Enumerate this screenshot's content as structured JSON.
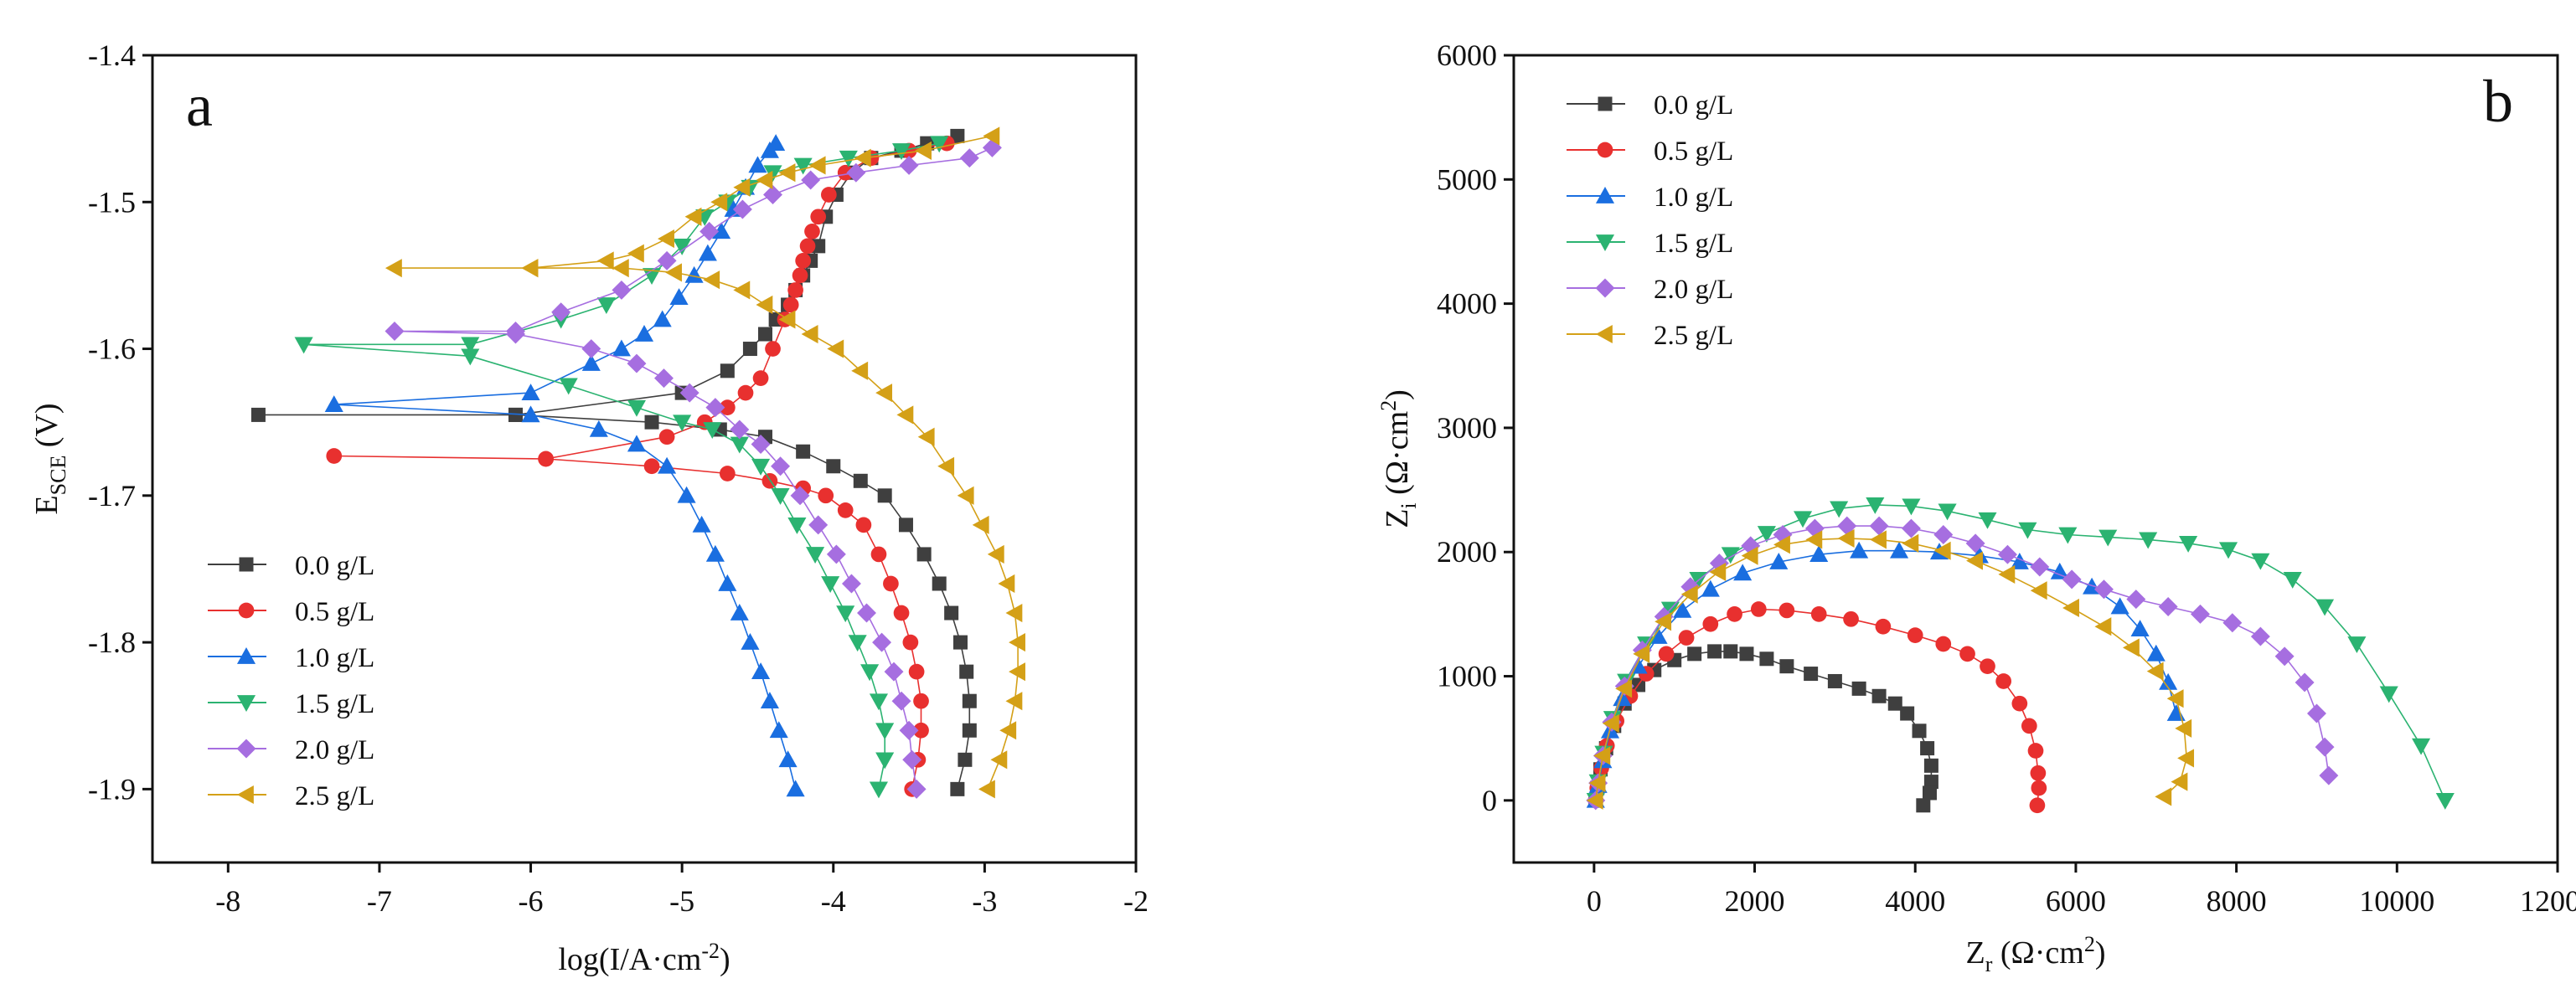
{
  "chart_data": [
    {
      "type": "line",
      "panel_label": "a",
      "xlabel_main": "log(I/A·cm",
      "xlabel_sup": "-2",
      "xlabel_end": ")",
      "ylabel_main": "E",
      "ylabel_sub": "SCE",
      "ylabel_end": " (V)",
      "xlim": [
        -8.5,
        -2.0
      ],
      "ylim": [
        -1.95,
        -1.4
      ],
      "xticks": [
        -8,
        -7,
        -6,
        -5,
        -4,
        -3,
        -2
      ],
      "xtick_labels": [
        "-8",
        "-7",
        "-6",
        "-5",
        "-4",
        "-3",
        "-2"
      ],
      "yticks": [
        -1.4,
        -1.5,
        -1.6,
        -1.7,
        -1.8,
        -1.9
      ],
      "ytick_labels": [
        "-1.4",
        "-1.5",
        "-1.6",
        "-1.7",
        "-1.8",
        "-1.9"
      ],
      "legend_position": "bottom-left",
      "series": [
        {
          "name": "0.0 g/L",
          "color": "#3f3f3f",
          "marker": "square",
          "x": [
            -3.18,
            -3.13,
            -3.1,
            -3.1,
            -3.12,
            -3.16,
            -3.22,
            -3.3,
            -3.4,
            -3.52,
            -3.66,
            -3.82,
            -4.0,
            -4.2,
            -4.45,
            -4.75,
            -5.2,
            -6.1,
            -7.8,
            -6.1,
            -5.0,
            -4.7,
            -4.55,
            -4.45,
            -4.38,
            -4.3,
            -4.25,
            -4.2,
            -4.15,
            -4.1,
            -4.05,
            -3.98,
            -3.88,
            -3.75,
            -3.55,
            -3.38,
            -3.18
          ],
          "y": [
            -1.9,
            -1.88,
            -1.86,
            -1.84,
            -1.82,
            -1.8,
            -1.78,
            -1.76,
            -1.74,
            -1.72,
            -1.7,
            -1.69,
            -1.68,
            -1.67,
            -1.66,
            -1.655,
            -1.65,
            -1.645,
            -1.645,
            -1.645,
            -1.63,
            -1.615,
            -1.6,
            -1.59,
            -1.58,
            -1.57,
            -1.56,
            -1.55,
            -1.54,
            -1.53,
            -1.51,
            -1.495,
            -1.48,
            -1.47,
            -1.465,
            -1.46,
            -1.455
          ]
        },
        {
          "name": "0.5 g/L",
          "color": "#e8302f",
          "marker": "circle",
          "x": [
            -3.48,
            -3.44,
            -3.42,
            -3.42,
            -3.45,
            -3.49,
            -3.55,
            -3.62,
            -3.7,
            -3.8,
            -3.92,
            -4.05,
            -4.2,
            -4.42,
            -4.7,
            -5.2,
            -5.9,
            -7.3,
            -5.9,
            -5.1,
            -4.85,
            -4.7,
            -4.58,
            -4.48,
            -4.4,
            -4.32,
            -4.28,
            -4.25,
            -4.22,
            -4.2,
            -4.17,
            -4.14,
            -4.1,
            -4.03,
            -3.92,
            -3.75,
            -3.5,
            -3.25
          ],
          "y": [
            -1.9,
            -1.88,
            -1.86,
            -1.84,
            -1.82,
            -1.8,
            -1.78,
            -1.76,
            -1.74,
            -1.72,
            -1.71,
            -1.7,
            -1.695,
            -1.69,
            -1.685,
            -1.68,
            -1.675,
            -1.673,
            -1.675,
            -1.66,
            -1.65,
            -1.64,
            -1.63,
            -1.62,
            -1.6,
            -1.58,
            -1.57,
            -1.56,
            -1.55,
            -1.54,
            -1.53,
            -1.52,
            -1.51,
            -1.495,
            -1.48,
            -1.47,
            -1.465,
            -1.46
          ]
        },
        {
          "name": "1.0 g/L",
          "color": "#1a6ee0",
          "marker": "triangle-up",
          "x": [
            -4.25,
            -4.3,
            -4.36,
            -4.42,
            -4.48,
            -4.55,
            -4.62,
            -4.7,
            -4.78,
            -4.87,
            -4.97,
            -5.1,
            -5.3,
            -5.55,
            -6.0,
            -7.3,
            -6.0,
            -5.6,
            -5.4,
            -5.25,
            -5.13,
            -5.02,
            -4.92,
            -4.83,
            -4.74,
            -4.66,
            -4.58,
            -4.5,
            -4.42,
            -4.38
          ],
          "y": [
            -1.9,
            -1.88,
            -1.86,
            -1.84,
            -1.82,
            -1.8,
            -1.78,
            -1.76,
            -1.74,
            -1.72,
            -1.7,
            -1.68,
            -1.665,
            -1.655,
            -1.645,
            -1.638,
            -1.63,
            -1.61,
            -1.6,
            -1.59,
            -1.58,
            -1.565,
            -1.55,
            -1.535,
            -1.52,
            -1.505,
            -1.49,
            -1.475,
            -1.465,
            -1.46
          ]
        },
        {
          "name": "1.5 g/L",
          "color": "#2bb371",
          "marker": "triangle-down",
          "x": [
            -3.7,
            -3.66,
            -3.66,
            -3.7,
            -3.76,
            -3.84,
            -3.92,
            -4.02,
            -4.12,
            -4.24,
            -4.35,
            -4.48,
            -4.62,
            -4.8,
            -5.0,
            -5.3,
            -5.75,
            -6.4,
            -7.5,
            -6.4,
            -5.8,
            -5.5,
            -5.2,
            -5.0,
            -4.85,
            -4.7,
            -4.55,
            -4.4,
            -4.2,
            -3.9,
            -3.55,
            -3.3
          ],
          "y": [
            -1.9,
            -1.88,
            -1.86,
            -1.84,
            -1.82,
            -1.8,
            -1.78,
            -1.76,
            -1.74,
            -1.72,
            -1.7,
            -1.68,
            -1.665,
            -1.655,
            -1.65,
            -1.64,
            -1.625,
            -1.605,
            -1.597,
            -1.597,
            -1.58,
            -1.57,
            -1.55,
            -1.53,
            -1.51,
            -1.5,
            -1.49,
            -1.48,
            -1.475,
            -1.47,
            -1.465,
            -1.46
          ]
        },
        {
          "name": "2.0 g/L",
          "color": "#a66ee0",
          "marker": "diamond",
          "x": [
            -3.45,
            -3.48,
            -3.5,
            -3.55,
            -3.6,
            -3.68,
            -3.78,
            -3.88,
            -3.98,
            -4.1,
            -4.22,
            -4.35,
            -4.48,
            -4.62,
            -4.78,
            -4.95,
            -5.12,
            -5.3,
            -5.6,
            -6.1,
            -6.9,
            -6.1,
            -5.8,
            -5.4,
            -5.1,
            -4.82,
            -4.6,
            -4.4,
            -4.15,
            -3.85,
            -3.5,
            -3.1,
            -2.95
          ],
          "y": [
            -1.9,
            -1.88,
            -1.86,
            -1.84,
            -1.82,
            -1.8,
            -1.78,
            -1.76,
            -1.74,
            -1.72,
            -1.7,
            -1.68,
            -1.665,
            -1.655,
            -1.64,
            -1.63,
            -1.62,
            -1.61,
            -1.6,
            -1.59,
            -1.588,
            -1.588,
            -1.575,
            -1.56,
            -1.54,
            -1.52,
            -1.505,
            -1.495,
            -1.485,
            -1.48,
            -1.475,
            -1.47,
            -1.463
          ]
        },
        {
          "name": "2.5 g/L",
          "color": "#d4a017",
          "marker": "triangle-left",
          "x": [
            -2.98,
            -2.9,
            -2.84,
            -2.8,
            -2.78,
            -2.78,
            -2.8,
            -2.85,
            -2.92,
            -3.02,
            -3.12,
            -3.25,
            -3.38,
            -3.52,
            -3.66,
            -3.82,
            -3.98,
            -4.15,
            -4.3,
            -4.45,
            -4.6,
            -4.8,
            -5.05,
            -5.4,
            -6.0,
            -6.9,
            -6.0,
            -5.5,
            -5.3,
            -5.1,
            -4.92,
            -4.75,
            -4.6,
            -4.45,
            -4.3,
            -4.1,
            -3.8,
            -3.4,
            -2.95
          ],
          "y": [
            -1.9,
            -1.88,
            -1.86,
            -1.84,
            -1.82,
            -1.8,
            -1.78,
            -1.76,
            -1.74,
            -1.72,
            -1.7,
            -1.68,
            -1.66,
            -1.645,
            -1.63,
            -1.615,
            -1.6,
            -1.59,
            -1.58,
            -1.57,
            -1.56,
            -1.553,
            -1.548,
            -1.545,
            -1.545,
            -1.545,
            -1.545,
            -1.54,
            -1.535,
            -1.525,
            -1.51,
            -1.5,
            -1.49,
            -1.485,
            -1.48,
            -1.475,
            -1.47,
            -1.465,
            -1.455
          ]
        }
      ]
    },
    {
      "type": "scatter",
      "panel_label": "b",
      "xlabel_main": "Z",
      "xlabel_sub": "r",
      "xlabel_unit_main": " (Ω·cm",
      "xlabel_unit_sup": "2",
      "xlabel_unit_end": ")",
      "ylabel_main": "Z",
      "ylabel_sub": "i",
      "ylabel_unit_main": " (Ω·cm",
      "ylabel_unit_sup": "2",
      "ylabel_unit_end": ")",
      "xlim": [
        -1000,
        12000
      ],
      "ylim": [
        -500,
        6000
      ],
      "xticks": [
        0,
        2000,
        4000,
        6000,
        8000,
        10000,
        12000
      ],
      "xtick_labels": [
        "0",
        "2000",
        "4000",
        "6000",
        "8000",
        "10000",
        "12000"
      ],
      "yticks": [
        0,
        1000,
        2000,
        3000,
        4000,
        5000,
        6000
      ],
      "ytick_labels": [
        "0",
        "1000",
        "2000",
        "3000",
        "4000",
        "5000",
        "6000"
      ],
      "legend_position": "top-left",
      "series": [
        {
          "name": "0.0 g/L",
          "color": "#3f3f3f",
          "marker": "square",
          "x": [
            20,
            40,
            80,
            150,
            250,
            380,
            550,
            750,
            1000,
            1250,
            1500,
            1700,
            1900,
            2150,
            2400,
            2700,
            3000,
            3300,
            3550,
            3750,
            3900,
            4050,
            4150,
            4200,
            4200,
            4180,
            4100
          ],
          "y": [
            0,
            100,
            250,
            420,
            600,
            780,
            930,
            1050,
            1130,
            1180,
            1200,
            1200,
            1180,
            1140,
            1080,
            1020,
            960,
            900,
            840,
            780,
            700,
            560,
            420,
            280,
            150,
            60,
            -40
          ]
        },
        {
          "name": "0.5 g/L",
          "color": "#e8302f",
          "marker": "circle",
          "x": [
            20,
            40,
            90,
            160,
            280,
            450,
            650,
            900,
            1150,
            1450,
            1750,
            2050,
            2400,
            2800,
            3200,
            3600,
            4000,
            4350,
            4650,
            4900,
            5100,
            5300,
            5420,
            5500,
            5530,
            5540,
            5520
          ],
          "y": [
            0,
            100,
            260,
            440,
            640,
            840,
            1020,
            1180,
            1310,
            1420,
            1500,
            1540,
            1530,
            1500,
            1460,
            1400,
            1330,
            1260,
            1180,
            1080,
            960,
            780,
            600,
            400,
            220,
            100,
            -40
          ]
        },
        {
          "name": "1.0 g/L",
          "color": "#1a6ee0",
          "marker": "triangle-up",
          "x": [
            20,
            50,
            110,
            200,
            350,
            550,
            800,
            1100,
            1450,
            1850,
            2300,
            2800,
            3300,
            3800,
            4300,
            4800,
            5300,
            5800,
            6200,
            6550,
            6800,
            7000,
            7150,
            7250
          ],
          "y": [
            0,
            120,
            320,
            560,
            820,
            1080,
            1320,
            1530,
            1700,
            1830,
            1920,
            1980,
            2010,
            2010,
            2000,
            1970,
            1920,
            1840,
            1720,
            1560,
            1380,
            1180,
            950,
            700
          ]
        },
        {
          "name": "1.5 g/L",
          "color": "#2bb371",
          "marker": "triangle-down",
          "x": [
            20,
            50,
            120,
            230,
            400,
            650,
            950,
            1300,
            1700,
            2150,
            2600,
            3050,
            3500,
            3950,
            4400,
            4900,
            5400,
            5900,
            6400,
            6900,
            7400,
            7900,
            8300,
            8700,
            9100,
            9500,
            9900,
            10300,
            10600
          ],
          "y": [
            0,
            150,
            380,
            660,
            960,
            1260,
            1540,
            1780,
            1980,
            2150,
            2270,
            2350,
            2380,
            2370,
            2330,
            2260,
            2180,
            2140,
            2120,
            2100,
            2070,
            2020,
            1930,
            1780,
            1560,
            1260,
            860,
            440,
            0
          ]
        },
        {
          "name": "2.0 g/L",
          "color": "#a66ee0",
          "marker": "diamond",
          "x": [
            20,
            50,
            110,
            220,
            380,
            600,
            870,
            1200,
            1560,
            1950,
            2350,
            2750,
            3150,
            3550,
            3950,
            4350,
            4750,
            5150,
            5550,
            5950,
            6350,
            6750,
            7150,
            7550,
            7950,
            8300,
            8600,
            8850,
            9000,
            9100,
            9150
          ],
          "y": [
            0,
            140,
            360,
            630,
            920,
            1210,
            1480,
            1720,
            1910,
            2050,
            2140,
            2190,
            2210,
            2210,
            2190,
            2140,
            2070,
            1980,
            1880,
            1780,
            1700,
            1620,
            1560,
            1500,
            1430,
            1320,
            1160,
            950,
            700,
            430,
            200
          ]
        },
        {
          "name": "2.5 g/L",
          "color": "#d4a017",
          "marker": "triangle-left",
          "x": [
            20,
            50,
            110,
            220,
            380,
            600,
            870,
            1200,
            1550,
            1950,
            2350,
            2750,
            3150,
            3550,
            3950,
            4350,
            4750,
            5150,
            5550,
            5950,
            6350,
            6700,
            7000,
            7250,
            7350,
            7380,
            7300,
            7100
          ],
          "y": [
            0,
            140,
            360,
            620,
            900,
            1180,
            1440,
            1660,
            1840,
            1970,
            2060,
            2100,
            2110,
            2100,
            2070,
            2010,
            1930,
            1820,
            1690,
            1550,
            1400,
            1230,
            1040,
            820,
            580,
            340,
            150,
            30
          ]
        }
      ]
    }
  ]
}
